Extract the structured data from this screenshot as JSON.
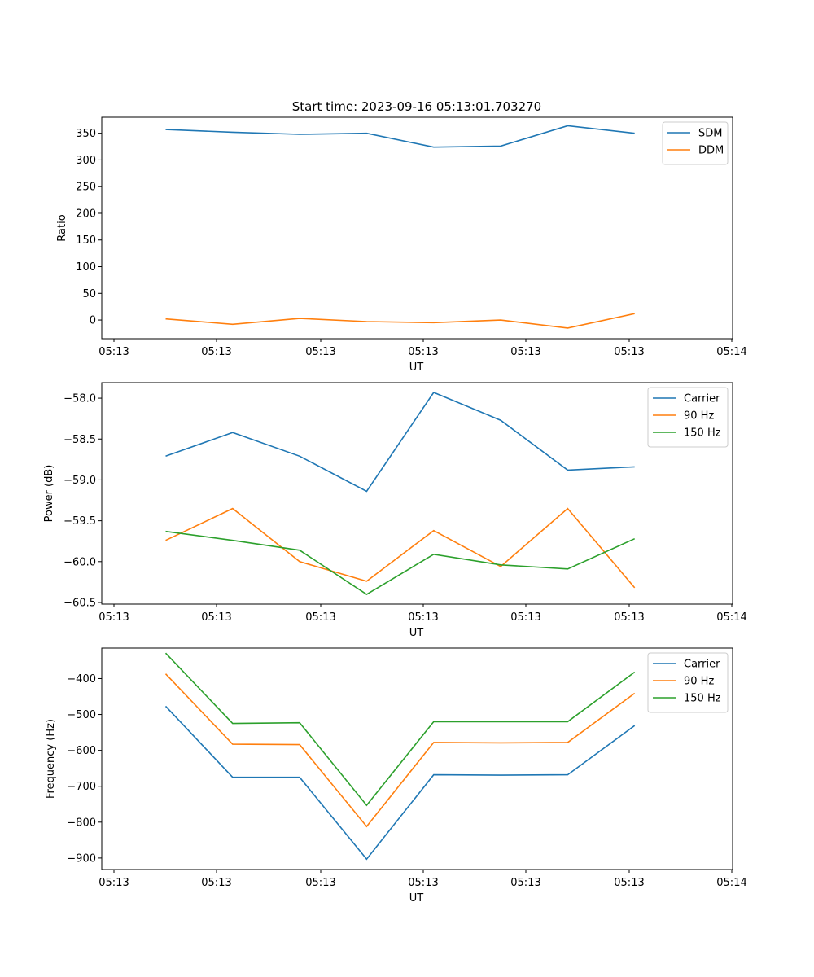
{
  "chart_data": [
    {
      "type": "line",
      "title": "Start time: 2023-09-16 05:13:01.703270",
      "xlabel": "UT",
      "ylabel": "Ratio",
      "x_tick_labels": [
        "05:13",
        "05:13",
        "05:13",
        "05:13",
        "05:13",
        "05:13",
        "05:14"
      ],
      "ylim": [
        -35,
        380
      ],
      "yticks": [
        0,
        50,
        100,
        150,
        200,
        250,
        300,
        350
      ],
      "legend": "top-right",
      "x": [
        0.5,
        1.15,
        1.8,
        2.45,
        3.1,
        3.75,
        4.4,
        5.05
      ],
      "xlim": [
        -0.12,
        6.0
      ],
      "series": [
        {
          "name": "SDM",
          "color": "#1f77b4",
          "values": [
            357,
            352,
            348,
            350,
            324,
            326,
            364,
            350
          ]
        },
        {
          "name": "DDM",
          "color": "#ff7f0e",
          "values": [
            2,
            -8,
            3,
            -3,
            -5,
            0,
            -15,
            12
          ]
        }
      ]
    },
    {
      "type": "line",
      "title": "",
      "xlabel": "UT",
      "ylabel": "Power (dB)",
      "x_tick_labels": [
        "05:13",
        "05:13",
        "05:13",
        "05:13",
        "05:13",
        "05:13",
        "05:14"
      ],
      "ylim": [
        -60.52,
        -57.81
      ],
      "yticks": [
        -60.5,
        -60.0,
        -59.5,
        -59.0,
        -58.5,
        -58.0
      ],
      "ytick_labels": [
        "−60.5",
        "−60.0",
        "−59.5",
        "−59.0",
        "−58.5",
        "−58.0"
      ],
      "legend": "top-right",
      "x": [
        0.5,
        1.15,
        1.8,
        2.45,
        3.1,
        3.75,
        4.4,
        5.05
      ],
      "xlim": [
        -0.12,
        6.0
      ],
      "series": [
        {
          "name": "Carrier",
          "color": "#1f77b4",
          "values": [
            -58.71,
            -58.42,
            -58.71,
            -59.14,
            -57.93,
            -58.27,
            -58.88,
            -58.84
          ]
        },
        {
          "name": "90 Hz",
          "color": "#ff7f0e",
          "values": [
            -59.74,
            -59.35,
            -60.0,
            -60.24,
            -59.62,
            -60.06,
            -59.35,
            -60.32
          ]
        },
        {
          "name": "150 Hz",
          "color": "#2ca02c",
          "values": [
            -59.63,
            -59.74,
            -59.86,
            -60.4,
            -59.91,
            -60.04,
            -60.09,
            -59.72
          ]
        }
      ]
    },
    {
      "type": "line",
      "title": "",
      "xlabel": "UT",
      "ylabel": "Frequency (Hz)",
      "x_tick_labels": [
        "05:13",
        "05:13",
        "05:13",
        "05:13",
        "05:13",
        "05:13",
        "05:14"
      ],
      "ylim": [
        -932,
        -315
      ],
      "yticks": [
        -900,
        -800,
        -700,
        -600,
        -500,
        -400
      ],
      "ytick_labels": [
        "−900",
        "−800",
        "−700",
        "−600",
        "−500",
        "−400"
      ],
      "legend": "top-right",
      "x": [
        0.5,
        1.15,
        1.8,
        2.45,
        3.1,
        3.75,
        4.4,
        5.05
      ],
      "xlim": [
        -0.12,
        6.0
      ],
      "series": [
        {
          "name": "Carrier",
          "color": "#1f77b4",
          "values": [
            -477,
            -675,
            -675,
            -903,
            -668,
            -669,
            -668,
            -531
          ]
        },
        {
          "name": "90 Hz",
          "color": "#ff7f0e",
          "values": [
            -387,
            -583,
            -584,
            -812,
            -578,
            -579,
            -578,
            -441
          ]
        },
        {
          "name": "150 Hz",
          "color": "#2ca02c",
          "values": [
            -329,
            -525,
            -523,
            -753,
            -520,
            -520,
            -520,
            -382
          ]
        }
      ]
    }
  ]
}
